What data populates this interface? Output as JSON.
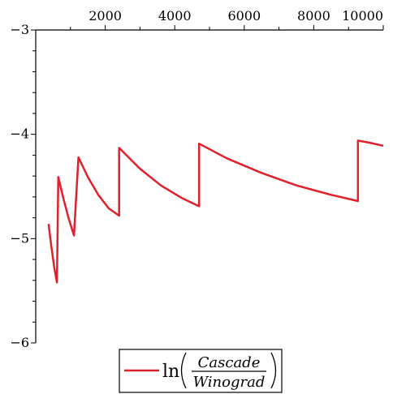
{
  "chart_data": {
    "type": "line",
    "title": "",
    "xlabel": "",
    "ylabel": "",
    "xlim": [
      0,
      10000
    ],
    "ylim": [
      -6,
      -3
    ],
    "x_ticks": [
      {
        "value": 2000,
        "label": "2000"
      },
      {
        "value": 4000,
        "label": "4000"
      },
      {
        "value": 6000,
        "label": "6000"
      },
      {
        "value": 8000,
        "label": "8000"
      },
      {
        "value": 10000,
        "label": "10000"
      }
    ],
    "y_ticks": [
      {
        "value": -3,
        "label": "−3"
      },
      {
        "value": -4,
        "label": "−4"
      },
      {
        "value": -5,
        "label": "−5"
      },
      {
        "value": -6,
        "label": "−6"
      }
    ],
    "grid": false,
    "legend_position": "bottom-center",
    "legend": {
      "func": "ln",
      "numerator": "Cascade",
      "denominator": "Winograd"
    },
    "series": [
      {
        "color": "#e0202a",
        "points": [
          [
            370,
            -4.86
          ],
          [
            450,
            -5.08
          ],
          [
            530,
            -5.27
          ],
          [
            610,
            -5.42
          ],
          [
            650,
            -4.41
          ],
          [
            800,
            -4.62
          ],
          [
            950,
            -4.81
          ],
          [
            1100,
            -4.97
          ],
          [
            1230,
            -4.22
          ],
          [
            1500,
            -4.41
          ],
          [
            1800,
            -4.58
          ],
          [
            2100,
            -4.71
          ],
          [
            2400,
            -4.78
          ],
          [
            2400,
            -4.13
          ],
          [
            3000,
            -4.33
          ],
          [
            3600,
            -4.49
          ],
          [
            4200,
            -4.61
          ],
          [
            4700,
            -4.69
          ],
          [
            4700,
            -4.09
          ],
          [
            5500,
            -4.23
          ],
          [
            6500,
            -4.37
          ],
          [
            7500,
            -4.49
          ],
          [
            8500,
            -4.58
          ],
          [
            9270,
            -4.64
          ],
          [
            9270,
            -4.06
          ],
          [
            9600,
            -4.08
          ],
          [
            10000,
            -4.11
          ]
        ]
      }
    ]
  }
}
